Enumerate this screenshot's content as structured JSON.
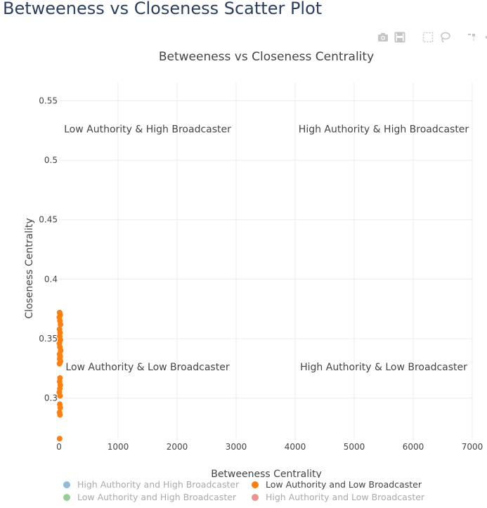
{
  "page": {
    "title": "Betweeness vs Closeness Scatter Plot"
  },
  "modebar": {
    "icons": [
      "camera-icon",
      "save-icon",
      "box-select-icon",
      "lasso-icon",
      "spike-lines-icon",
      "hover-compare-icon"
    ]
  },
  "colors": {
    "high_high": "#1f77b4",
    "low_low": "#ff7f0e",
    "low_high": "#2ca02c",
    "high_low": "#d62728",
    "grid": "#ebebeb",
    "text": "#444444",
    "title_text": "#2a3f5f"
  },
  "chart_data": {
    "type": "scatter",
    "title": "Betweeness vs Closeness Centrality",
    "xlabel": "Betweeness Centrality",
    "ylabel": "Closeness Centrality",
    "xlim": [
      0,
      7000
    ],
    "ylim": [
      0.265,
      0.565
    ],
    "xticks": [
      0,
      1000,
      2000,
      3000,
      4000,
      5000,
      6000,
      7000
    ],
    "xtick_labels": [
      "0",
      "1000",
      "2000",
      "3000",
      "4000",
      "5000",
      "6000",
      "7000"
    ],
    "yticks": [
      0.3,
      0.35,
      0.4,
      0.45,
      0.5,
      0.55
    ],
    "ytick_labels": [
      "0.3",
      "0.35",
      "0.4",
      "0.45",
      "0.5",
      "0.55"
    ],
    "annotations": [
      {
        "text": "Low Authority & High Broadcaster",
        "x": 1500,
        "y": 0.5235
      },
      {
        "text": "High Authority & High Broadcaster",
        "x": 5500,
        "y": 0.5235
      },
      {
        "text": "Low Authority & Low Broadcaster",
        "x": 1500,
        "y": 0.3235
      },
      {
        "text": "High Authority & Low Broadcaster",
        "x": 5500,
        "y": 0.3235
      }
    ],
    "series": [
      {
        "name": "Low Authority and Low Broadcaster",
        "color": "#ff7f0e",
        "visible": true,
        "points": [
          [
            10,
            0.372
          ],
          [
            20,
            0.37
          ],
          [
            5,
            0.368
          ],
          [
            15,
            0.365
          ],
          [
            25,
            0.362
          ],
          [
            8,
            0.358
          ],
          [
            18,
            0.355
          ],
          [
            12,
            0.352
          ],
          [
            22,
            0.349
          ],
          [
            6,
            0.346
          ],
          [
            14,
            0.343
          ],
          [
            28,
            0.34
          ],
          [
            9,
            0.337
          ],
          [
            19,
            0.335
          ],
          [
            11,
            0.333
          ],
          [
            24,
            0.331
          ],
          [
            7,
            0.329
          ],
          [
            16,
            0.317
          ],
          [
            10,
            0.314
          ],
          [
            21,
            0.311
          ],
          [
            13,
            0.308
          ],
          [
            5,
            0.305
          ],
          [
            18,
            0.302
          ],
          [
            12,
            0.295
          ],
          [
            20,
            0.292
          ],
          [
            8,
            0.288
          ],
          [
            16,
            0.286
          ],
          [
            10,
            0.266
          ]
        ]
      },
      {
        "name": "High Authority and High Broadcaster",
        "color": "#1f77b4",
        "visible": false,
        "points": []
      },
      {
        "name": "Low Authority and High Broadcaster",
        "color": "#2ca02c",
        "visible": false,
        "points": []
      },
      {
        "name": "High Authority and Low Broadcaster",
        "color": "#d62728",
        "visible": false,
        "points": []
      }
    ],
    "legend": [
      {
        "label": "High Authority and High Broadcaster",
        "color": "#1f77b4",
        "visible": false
      },
      {
        "label": "Low Authority and Low Broadcaster",
        "color": "#ff7f0e",
        "visible": true
      },
      {
        "label": "Low Authority and High Broadcaster",
        "color": "#2ca02c",
        "visible": false
      },
      {
        "label": "High Authority and Low Broadcaster",
        "color": "#d62728",
        "visible": false
      }
    ],
    "legend_position": "bottom",
    "grid": true
  }
}
